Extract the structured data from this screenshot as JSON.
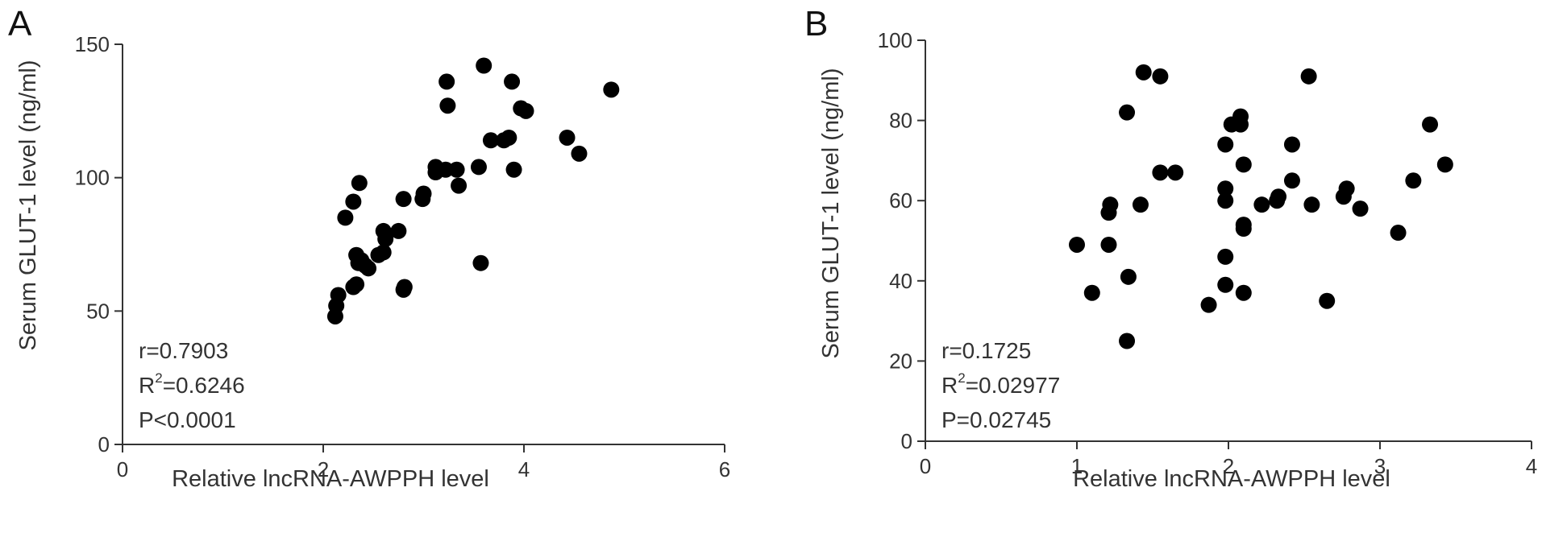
{
  "chart_data": [
    {
      "type": "scatter",
      "panel_label": "A",
      "xlabel": "Relative lncRNA-AWPPH level",
      "ylabel": "Serum GLUT-1 level (ng/ml)",
      "xlim": [
        0,
        6
      ],
      "ylim": [
        0,
        150
      ],
      "xticks": [
        0,
        2,
        4,
        6
      ],
      "yticks": [
        0,
        50,
        100,
        150
      ],
      "grid": false,
      "stats": {
        "r": "r=0.7903",
        "r2_prefix": "R",
        "r2_sup": "2",
        "r2_value": "=0.6246",
        "p": "P<0.0001"
      },
      "points": [
        [
          2.12,
          48
        ],
        [
          2.13,
          52
        ],
        [
          2.15,
          56
        ],
        [
          2.22,
          85
        ],
        [
          2.3,
          91
        ],
        [
          2.3,
          59
        ],
        [
          2.33,
          60
        ],
        [
          2.33,
          71
        ],
        [
          2.35,
          68
        ],
        [
          2.36,
          98
        ],
        [
          2.38,
          69
        ],
        [
          2.42,
          67
        ],
        [
          2.45,
          66
        ],
        [
          2.55,
          71
        ],
        [
          2.6,
          72
        ],
        [
          2.6,
          80
        ],
        [
          2.62,
          77
        ],
        [
          2.75,
          80
        ],
        [
          2.8,
          92
        ],
        [
          2.8,
          58
        ],
        [
          2.81,
          59
        ],
        [
          2.99,
          92
        ],
        [
          3.0,
          94
        ],
        [
          3.12,
          104
        ],
        [
          3.12,
          102
        ],
        [
          3.22,
          103
        ],
        [
          3.23,
          136
        ],
        [
          3.24,
          127
        ],
        [
          3.33,
          103
        ],
        [
          3.35,
          97
        ],
        [
          3.55,
          104
        ],
        [
          3.57,
          68
        ],
        [
          3.6,
          142
        ],
        [
          3.67,
          114
        ],
        [
          3.8,
          114
        ],
        [
          3.85,
          115
        ],
        [
          3.88,
          136
        ],
        [
          3.9,
          103
        ],
        [
          3.97,
          126
        ],
        [
          4.02,
          125
        ],
        [
          4.43,
          115
        ],
        [
          4.55,
          109
        ],
        [
          4.87,
          133
        ]
      ]
    },
    {
      "type": "scatter",
      "panel_label": "B",
      "xlabel": "Relative lncRNA-AWPPH level",
      "ylabel": "Serum GLUT-1 level (ng/ml)",
      "xlim": [
        0,
        4
      ],
      "ylim": [
        0,
        100
      ],
      "xticks": [
        0,
        1,
        2,
        3,
        4
      ],
      "yticks": [
        0,
        20,
        40,
        60,
        80,
        100
      ],
      "grid": false,
      "stats": {
        "r": "r=0.1725",
        "r2_prefix": "R",
        "r2_sup": "2",
        "r2_value": "=0.02977",
        "p": "P=0.02745"
      },
      "points": [
        [
          1.0,
          49
        ],
        [
          1.1,
          37
        ],
        [
          1.21,
          57
        ],
        [
          1.21,
          49
        ],
        [
          1.22,
          59
        ],
        [
          1.33,
          82
        ],
        [
          1.34,
          41
        ],
        [
          1.33,
          25
        ],
        [
          1.42,
          59
        ],
        [
          1.44,
          92
        ],
        [
          1.55,
          91
        ],
        [
          1.55,
          67
        ],
        [
          1.65,
          67
        ],
        [
          1.87,
          34
        ],
        [
          1.98,
          74
        ],
        [
          1.98,
          63
        ],
        [
          1.98,
          60
        ],
        [
          1.98,
          46
        ],
        [
          1.98,
          39
        ],
        [
          2.02,
          79
        ],
        [
          2.08,
          81
        ],
        [
          2.08,
          79
        ],
        [
          2.1,
          69
        ],
        [
          2.1,
          54
        ],
        [
          2.1,
          53
        ],
        [
          2.1,
          37
        ],
        [
          2.22,
          59
        ],
        [
          2.32,
          60
        ],
        [
          2.33,
          61
        ],
        [
          2.42,
          74
        ],
        [
          2.42,
          65
        ],
        [
          2.53,
          91
        ],
        [
          2.55,
          59
        ],
        [
          2.65,
          35
        ],
        [
          2.76,
          61
        ],
        [
          2.78,
          63
        ],
        [
          2.87,
          58
        ],
        [
          3.12,
          52
        ],
        [
          3.22,
          65
        ],
        [
          3.33,
          79
        ],
        [
          3.43,
          69
        ]
      ]
    }
  ]
}
